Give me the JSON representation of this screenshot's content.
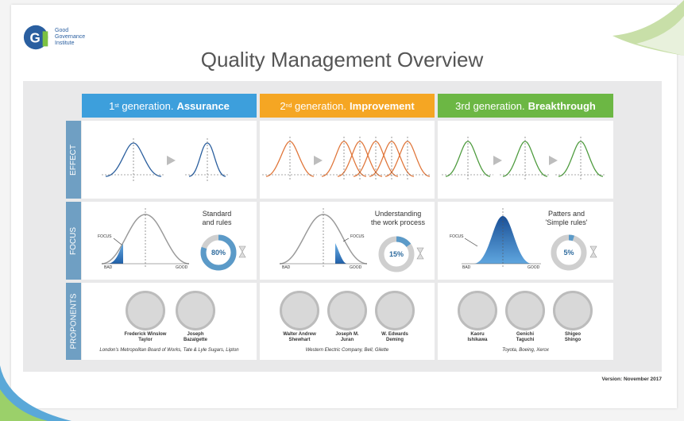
{
  "logo": {
    "line1": "Good",
    "line2": "Governance",
    "line3": "Institute"
  },
  "title": "Quality Management Overview",
  "rows": {
    "effect": "EFFECT",
    "focus": "FOCUS",
    "proponents": "PROPONENTS"
  },
  "generations": [
    {
      "num": "1",
      "suffix": "st",
      "text": "generation.",
      "bold": "Assurance",
      "color": "#3d9fdc",
      "focus_line1": "Standard",
      "focus_line2": "and rules",
      "gauge": "80%",
      "people": [
        {
          "line1": "Frederick Winslow",
          "line2": "Taylor"
        },
        {
          "line1": "Joseph",
          "line2": "Bazalgette"
        }
      ],
      "orgs": "London's Metropolitan Board of Works, Tate & Lyle Sugars, Lipton"
    },
    {
      "num": "2",
      "suffix": "nd",
      "text": "generation.",
      "bold": "Improvement",
      "color": "#f5a623",
      "focus_line1": "Understanding",
      "focus_line2": "the work process",
      "gauge": "15%",
      "people": [
        {
          "line1": "Walter Andrew",
          "line2": "Shewhart"
        },
        {
          "line1": "Joseph M.",
          "line2": "Juran"
        },
        {
          "line1": "W. Edwards",
          "line2": "Deming"
        }
      ],
      "orgs": "Western Electric Company, Bell, Gilette"
    },
    {
      "num": "3rd",
      "suffix": "",
      "text": "generation.",
      "bold": "Breakthrough",
      "color": "#6cb744",
      "focus_line1": "Patters and",
      "focus_line2": "'Simple rules'",
      "gauge": "5%",
      "people": [
        {
          "line1": "Kaoru",
          "line2": "Ishikawa"
        },
        {
          "line1": "Genichi",
          "line2": "Taguchi"
        },
        {
          "line1": "Shigeo",
          "line2": "Shingo"
        }
      ],
      "orgs": "Toyota, Boeing, Xerox"
    }
  ],
  "axis": {
    "focus": "FOCUS",
    "bad": "BAD",
    "good": "GOOD"
  },
  "version": "Version: November 2017",
  "colors": {
    "blue": "#2b5f9e",
    "orange": "#e0763a",
    "green": "#4c9a3c",
    "side": "#6f9fc3"
  }
}
